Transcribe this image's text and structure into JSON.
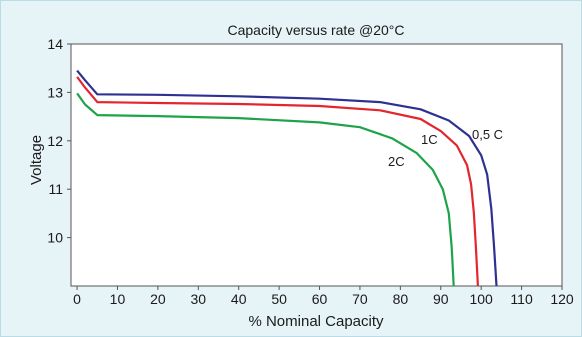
{
  "chart_data": {
    "type": "line",
    "title": "Capacity versus rate @20°C",
    "xlabel": "% Nominal Capacity",
    "ylabel": "Voltage",
    "xlim": [
      -1.5,
      120
    ],
    "ylim": [
      9.0,
      14.0
    ],
    "x_ticks": [
      0,
      10,
      20,
      30,
      40,
      50,
      60,
      70,
      80,
      90,
      100,
      110,
      120
    ],
    "y_ticks": [
      10,
      11,
      12,
      13,
      14
    ],
    "grid": false,
    "legend": "none",
    "series": [
      {
        "name": "0,5 C",
        "color": "#2e3192",
        "points": [
          [
            0,
            13.45
          ],
          [
            2,
            13.25
          ],
          [
            5,
            12.96
          ],
          [
            20,
            12.95
          ],
          [
            40,
            12.92
          ],
          [
            60,
            12.87
          ],
          [
            75,
            12.8
          ],
          [
            85,
            12.65
          ],
          [
            92,
            12.42
          ],
          [
            97,
            12.1
          ],
          [
            100,
            11.7
          ],
          [
            101.5,
            11.3
          ],
          [
            102.5,
            10.6
          ],
          [
            103.2,
            9.8
          ],
          [
            103.8,
            9.0
          ]
        ]
      },
      {
        "name": "1C",
        "color": "#e3262e",
        "points": [
          [
            0,
            13.32
          ],
          [
            2,
            13.1
          ],
          [
            5,
            12.8
          ],
          [
            20,
            12.78
          ],
          [
            40,
            12.76
          ],
          [
            60,
            12.72
          ],
          [
            75,
            12.63
          ],
          [
            85,
            12.45
          ],
          [
            90,
            12.2
          ],
          [
            94,
            11.9
          ],
          [
            96.5,
            11.5
          ],
          [
            97.5,
            11.1
          ],
          [
            98.2,
            10.5
          ],
          [
            98.7,
            9.8
          ],
          [
            99.2,
            9.0
          ]
        ]
      },
      {
        "name": "2C",
        "color": "#1fa34a",
        "points": [
          [
            0,
            12.98
          ],
          [
            2,
            12.75
          ],
          [
            5,
            12.53
          ],
          [
            20,
            12.51
          ],
          [
            40,
            12.47
          ],
          [
            60,
            12.38
          ],
          [
            70,
            12.28
          ],
          [
            78,
            12.05
          ],
          [
            84,
            11.75
          ],
          [
            88,
            11.4
          ],
          [
            90.5,
            11.0
          ],
          [
            92,
            10.5
          ],
          [
            92.7,
            9.8
          ],
          [
            93.2,
            9.0
          ]
        ]
      }
    ]
  }
}
